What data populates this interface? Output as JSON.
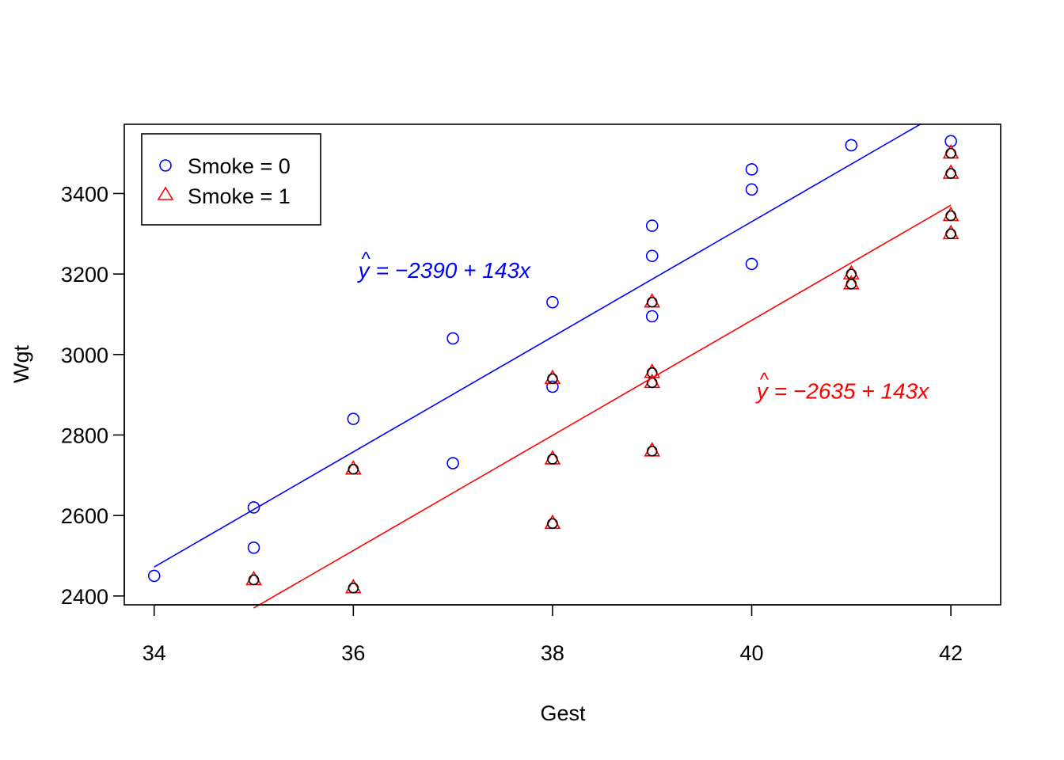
{
  "chart_data": {
    "type": "scatter",
    "xlabel": "Gest",
    "ylabel": "Wgt",
    "xlim": [
      33.7,
      42.5
    ],
    "ylim": [
      2378,
      3572
    ],
    "x_ticks": [
      34,
      36,
      38,
      40,
      42
    ],
    "y_ticks": [
      2400,
      2600,
      2800,
      3000,
      3200,
      3400
    ],
    "colors": {
      "smoke0": "#0000ff",
      "smoke1": "#ff0000",
      "overlay": "#000000"
    },
    "legend": {
      "placement": "top-left",
      "entries": [
        {
          "label": "Smoke = 0",
          "marker": "circle",
          "color": "#0000ff"
        },
        {
          "label": "Smoke = 1",
          "marker": "triangle",
          "color": "#ff0000"
        }
      ]
    },
    "series": [
      {
        "name": "Smoke = 0",
        "marker": "circle",
        "color": "#0000ff",
        "points": [
          [
            34,
            2450
          ],
          [
            35,
            2620
          ],
          [
            35,
            2520
          ],
          [
            36,
            2840
          ],
          [
            37,
            3040
          ],
          [
            37,
            2730
          ],
          [
            38,
            3130
          ],
          [
            38,
            2920
          ],
          [
            39,
            3320
          ],
          [
            39,
            3245
          ],
          [
            39,
            3095
          ],
          [
            40,
            3460
          ],
          [
            40,
            3410
          ],
          [
            40,
            3225
          ],
          [
            41,
            3520
          ],
          [
            42,
            3530
          ]
        ],
        "fit": {
          "intercept": -2390,
          "slope": 143,
          "x_range": [
            34,
            41.7
          ]
        }
      },
      {
        "name": "Smoke = 1",
        "marker": "triangle",
        "color": "#ff0000",
        "points": [
          [
            35,
            2440
          ],
          [
            36,
            2715
          ],
          [
            36,
            2420
          ],
          [
            38,
            2940
          ],
          [
            38,
            2740
          ],
          [
            38,
            2580
          ],
          [
            39,
            3130
          ],
          [
            39,
            2955
          ],
          [
            39,
            2930
          ],
          [
            39,
            2760
          ],
          [
            41,
            3200
          ],
          [
            41,
            3175
          ],
          [
            42,
            3500
          ],
          [
            42,
            3450
          ],
          [
            42,
            3345
          ],
          [
            42,
            3300
          ]
        ],
        "fit": {
          "intercept": -2635,
          "slope": 143,
          "x_range": [
            35,
            42
          ]
        }
      }
    ],
    "annotations": [
      {
        "series": "Smoke = 0",
        "text": "= −2390 + 143x",
        "x": 36.05,
        "y": 3190,
        "color": "#0000ff"
      },
      {
        "series": "Smoke = 1",
        "text": "= −2635 + 143x",
        "x": 40.05,
        "y": 2890,
        "color": "#ff0000"
      }
    ]
  }
}
